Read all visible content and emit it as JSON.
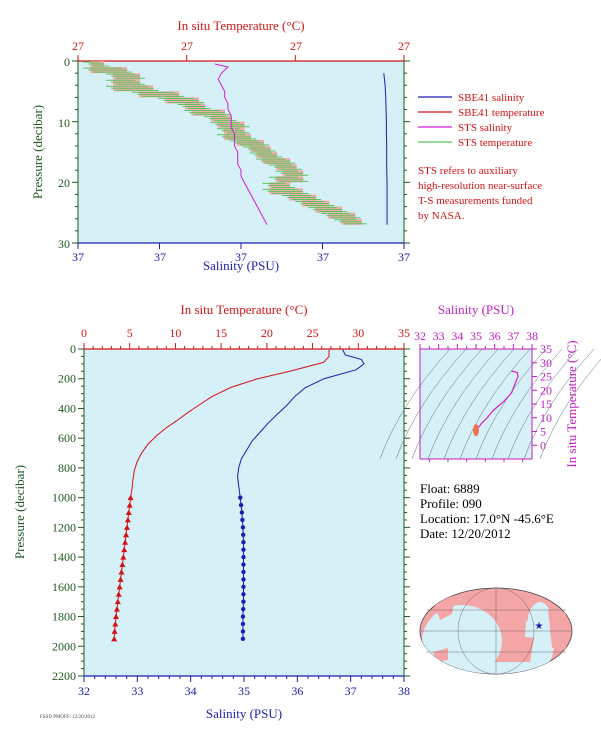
{
  "colors": {
    "panel_bg": "#d6f0f8",
    "salinity_axis": "#1d1db0",
    "temperature_axis": "#d21414",
    "pressure_axis": "#1e5a1e",
    "sts_salinity": "#d21ed2",
    "sts_temperature": "#5cc25c",
    "sbe_temperature_fill": "#f4a0a0",
    "ts_axis": "#c21ec2",
    "note": "#d21414"
  },
  "legend": {
    "items": [
      {
        "label": "SBE41 salinity",
        "color": "#1d1db0"
      },
      {
        "label": "SBE41 temperature",
        "color": "#d21414"
      },
      {
        "label": "STS salinity",
        "color": "#d21ed2"
      },
      {
        "label": "STS temperature",
        "color": "#5cc25c"
      }
    ],
    "note_lines": [
      "STS refers to auxiliary",
      "high-resolution near-surface",
      "T-S measurements funded",
      "by NASA."
    ]
  },
  "info": {
    "float": "Float:  6889",
    "profile": "Profile:  090",
    "location": "Location:  17.0°N  -45.6°E",
    "date": "Date:  12/20/2012"
  },
  "footer": "FSSD PMOFF: 12/20/2012",
  "chart_data": [
    {
      "type": "line",
      "title": "",
      "top_axis_label": "In situ Temperature (°C)",
      "bottom_axis_label": "Salinity (PSU)",
      "ylabel": "Pressure (decibar)",
      "ylim": [
        30,
        0
      ],
      "top_ticks": [
        "27",
        "27",
        "27",
        "27"
      ],
      "bottom_ticks": [
        "37",
        "37",
        "37",
        "37",
        "37"
      ],
      "y_ticks": [
        0,
        10,
        20,
        30
      ],
      "legend_position": "right",
      "series": [
        {
          "name": "STS salinity",
          "pressure": [
            0.5,
            1,
            2,
            3,
            4,
            5,
            6,
            7,
            8,
            9,
            10,
            11,
            12,
            13,
            14,
            15,
            16,
            17,
            18,
            19,
            20,
            21,
            22,
            23,
            24,
            25,
            26,
            27
          ],
          "x_frac": [
            0.42,
            0.46,
            0.44,
            0.43,
            0.44,
            0.45,
            0.45,
            0.46,
            0.46,
            0.47,
            0.47,
            0.47,
            0.48,
            0.48,
            0.48,
            0.49,
            0.49,
            0.49,
            0.5,
            0.5,
            0.51,
            0.52,
            0.53,
            0.54,
            0.55,
            0.56,
            0.57,
            0.58
          ]
        },
        {
          "name": "SBE41 salinity",
          "pressure": [
            2,
            4,
            6,
            8,
            10,
            12,
            14,
            16,
            18,
            20,
            22,
            24,
            26,
            27
          ],
          "x_frac": [
            0.938,
            0.942,
            0.944,
            0.945,
            0.946,
            0.946,
            0.947,
            0.947,
            0.947,
            0.948,
            0.948,
            0.948,
            0.948,
            0.948
          ]
        },
        {
          "name": "STS temperature",
          "pressure": [
            1,
            2,
            3,
            4,
            5,
            6,
            7,
            8,
            9,
            10,
            11,
            12,
            13,
            14,
            15,
            16,
            17,
            18,
            19,
            20,
            21,
            22,
            23,
            24,
            25,
            26,
            27
          ],
          "x_frac": [
            0.05,
            0.12,
            0.16,
            0.12,
            0.2,
            0.28,
            0.34,
            0.36,
            0.42,
            0.44,
            0.48,
            0.46,
            0.5,
            0.54,
            0.56,
            0.58,
            0.62,
            0.64,
            0.66,
            0.62,
            0.6,
            0.66,
            0.7,
            0.74,
            0.78,
            0.82,
            0.84
          ]
        }
      ]
    },
    {
      "type": "line",
      "title": "",
      "top_axis_label": "In situ Temperature (°C)",
      "bottom_axis_label": "Salinity (PSU)",
      "ylabel": "Pressure (decibar)",
      "xlim_salinity": [
        32,
        38
      ],
      "xlim_temperature": [
        0,
        35
      ],
      "ylim": [
        2200,
        0
      ],
      "salinity_ticks": [
        32,
        33,
        34,
        35,
        36,
        37,
        38
      ],
      "temperature_ticks": [
        0,
        5,
        10,
        15,
        20,
        25,
        30,
        35
      ],
      "pressure_ticks": [
        0,
        200,
        400,
        600,
        800,
        1000,
        1200,
        1400,
        1600,
        1800,
        2000,
        2200
      ],
      "series": [
        {
          "name": "SBE41 temperature",
          "pressure": [
            5,
            50,
            90,
            150,
            200,
            260,
            320,
            380,
            430,
            480,
            530,
            580,
            640,
            700,
            760,
            820,
            880,
            940,
            1000,
            1100,
            1200,
            1300,
            1400,
            1500,
            1600,
            1700,
            1800,
            1900,
            1950
          ],
          "values": [
            26.8,
            26.8,
            26.2,
            22.5,
            19.0,
            16.0,
            14.0,
            12.5,
            11.3,
            10.2,
            9.0,
            8.0,
            7.0,
            6.3,
            5.8,
            5.5,
            5.35,
            5.25,
            5.1,
            4.9,
            4.7,
            4.5,
            4.3,
            4.1,
            3.9,
            3.7,
            3.5,
            3.35,
            3.3
          ]
        },
        {
          "name": "SBE41 salinity",
          "pressure": [
            5,
            40,
            70,
            100,
            140,
            200,
            260,
            320,
            380,
            440,
            500,
            560,
            620,
            680,
            740,
            800,
            860,
            920,
            1000,
            1100,
            1200,
            1300,
            1400,
            1500,
            1600,
            1700,
            1800,
            1900,
            1950
          ],
          "values": [
            36.85,
            36.9,
            37.2,
            37.25,
            37.1,
            36.5,
            36.15,
            35.95,
            35.8,
            35.62,
            35.45,
            35.3,
            35.15,
            35.05,
            34.95,
            34.9,
            34.88,
            34.9,
            34.93,
            34.96,
            34.98,
            34.99,
            34.99,
            34.99,
            34.99,
            34.99,
            34.98,
            34.98,
            34.98
          ]
        }
      ],
      "marker_pressures": [
        1000,
        1050,
        1100,
        1150,
        1200,
        1250,
        1300,
        1350,
        1400,
        1450,
        1500,
        1550,
        1600,
        1650,
        1700,
        1750,
        1800,
        1850,
        1900,
        1950
      ]
    },
    {
      "type": "line",
      "title": "",
      "top_axis_label": "Salinity (PSU)",
      "right_axis_label": "In situ Temperature (°C)",
      "xlim": [
        32,
        38
      ],
      "ylim": [
        -5,
        35
      ],
      "x_ticks": [
        32,
        33,
        34,
        35,
        36,
        37,
        38
      ],
      "y_ticks": [
        0,
        5,
        10,
        15,
        20,
        25,
        30,
        35
      ],
      "series": [
        {
          "name": "T-S curve",
          "salinity": [
            35.0,
            35.3,
            35.6,
            35.9,
            36.15,
            36.5,
            36.9,
            37.1,
            37.25,
            37.2,
            36.9
          ],
          "temperature": [
            5.2,
            8,
            10,
            12.5,
            14,
            16,
            19,
            22.5,
            25,
            26.5,
            27
          ]
        }
      ]
    },
    {
      "type": "map",
      "title": "",
      "marker": {
        "lat": 17.0,
        "lon": -45.6
      }
    }
  ]
}
